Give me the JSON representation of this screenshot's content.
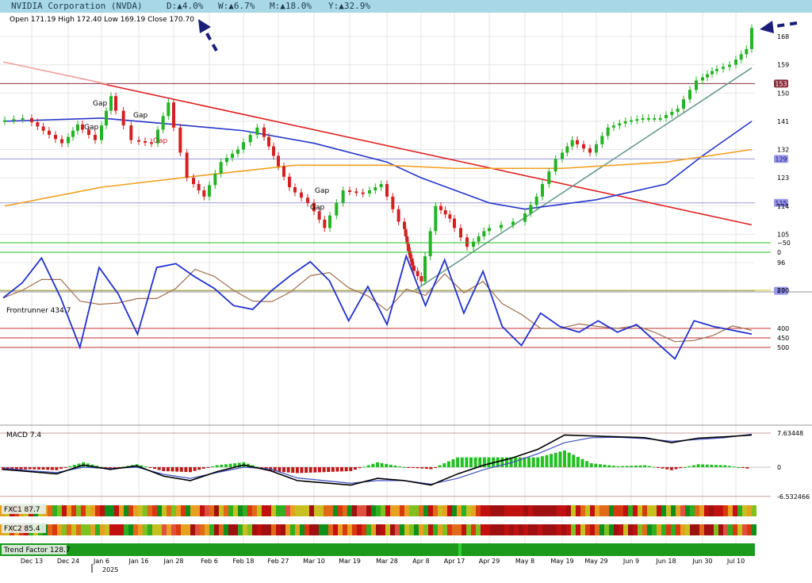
{
  "header": {
    "company": "NVIDIA Corporation (NVDA)",
    "day": "D:▲4.0%",
    "week": "W:▲6.7%",
    "month": "M:▲18.0%",
    "year": "Y:▲32.9%",
    "ohlc": "Open 171.19  High 172.40  Low 169.19  Close 170.70"
  },
  "chart_data": {
    "type": "candlestick",
    "price_axis_ticks": [
      168,
      159,
      150,
      141,
      132,
      123,
      114,
      105,
      96
    ],
    "level_labels": [
      "153",
      "129",
      "115",
      "87"
    ],
    "gap_labels": [
      "Gap",
      "Gap",
      "Gap",
      "Gap",
      "Gap",
      "Gap",
      "Gap"
    ],
    "x_tick_labels": [
      "Dec 13",
      "Dec 24",
      "Jan 6",
      "Jan 16",
      "Jan 28",
      "Feb 6",
      "Feb 18",
      "Feb 27",
      "Mar 10",
      "Mar 19",
      "Mar 28",
      "Apr 8",
      "Apr 17",
      "Apr 29",
      "May 8",
      "May 19",
      "May 29",
      "Jun 9",
      "Jun 18",
      "Jun 30",
      "Jul 10"
    ],
    "year_label": "2025",
    "close_series": [
      {
        "d": "Dec 6",
        "v": 142
      },
      {
        "d": "Dec 13",
        "v": 138
      },
      {
        "d": "Dec 20",
        "v": 134
      },
      {
        "d": "Dec 24",
        "v": 140
      },
      {
        "d": "Dec 31",
        "v": 135
      },
      {
        "d": "Jan 6",
        "v": 149
      },
      {
        "d": "Jan 10",
        "v": 135
      },
      {
        "d": "Jan 16",
        "v": 134
      },
      {
        "d": "Jan 23",
        "v": 147
      },
      {
        "d": "Jan 28",
        "v": 123
      },
      {
        "d": "Feb 3",
        "v": 117
      },
      {
        "d": "Feb 6",
        "v": 128
      },
      {
        "d": "Feb 12",
        "v": 132
      },
      {
        "d": "Feb 18",
        "v": 139
      },
      {
        "d": "Feb 24",
        "v": 130
      },
      {
        "d": "Feb 27",
        "v": 120
      },
      {
        "d": "Mar 4",
        "v": 115
      },
      {
        "d": "Mar 10",
        "v": 107
      },
      {
        "d": "Mar 14",
        "v": 119
      },
      {
        "d": "Mar 19",
        "v": 118
      },
      {
        "d": "Mar 24",
        "v": 121
      },
      {
        "d": "Mar 28",
        "v": 109
      },
      {
        "d": "Apr 3",
        "v": 102
      },
      {
        "d": "Apr 4",
        "v": 95
      },
      {
        "d": "Apr 7",
        "v": 90
      },
      {
        "d": "Apr 9",
        "v": 114
      },
      {
        "d": "Apr 14",
        "v": 110
      },
      {
        "d": "Apr 17",
        "v": 101
      },
      {
        "d": "Apr 24",
        "v": 106
      },
      {
        "d": "Apr 29",
        "v": 109
      },
      {
        "d": "May 8",
        "v": 117
      },
      {
        "d": "May 12",
        "v": 129
      },
      {
        "d": "May 19",
        "v": 135
      },
      {
        "d": "May 23",
        "v": 131
      },
      {
        "d": "May 29",
        "v": 139
      },
      {
        "d": "Jun 4",
        "v": 141
      },
      {
        "d": "Jun 9",
        "v": 142
      },
      {
        "d": "Jun 13",
        "v": 142
      },
      {
        "d": "Jun 18",
        "v": 145
      },
      {
        "d": "Jun 25",
        "v": 154
      },
      {
        "d": "Jun 30",
        "v": 157
      },
      {
        "d": "Jul 3",
        "v": 159
      },
      {
        "d": "Jul 10",
        "v": 164
      },
      {
        "d": "Jul 15",
        "v": 170.7
      }
    ],
    "moving_averages": [
      {
        "color": "#2535c8",
        "points": [
          {
            "d": "Dec 6",
            "v": 141
          },
          {
            "d": "Jan 6",
            "v": 142
          },
          {
            "d": "Jan 28",
            "v": 140
          },
          {
            "d": "Feb 18",
            "v": 138
          },
          {
            "d": "Mar 10",
            "v": 134
          },
          {
            "d": "Mar 28",
            "v": 128
          },
          {
            "d": "Apr 8",
            "v": 123
          },
          {
            "d": "Apr 29",
            "v": 115
          },
          {
            "d": "May 8",
            "v": 113
          },
          {
            "d": "May 29",
            "v": 116
          },
          {
            "d": "Jun 18",
            "v": 121
          },
          {
            "d": "Jun 30",
            "v": 130
          },
          {
            "d": "Jul 15",
            "v": 141
          }
        ]
      },
      {
        "color": "#f0a020",
        "points": [
          {
            "d": "Dec 6",
            "v": 114
          },
          {
            "d": "Jan 6",
            "v": 120
          },
          {
            "d": "Feb 6",
            "v": 124
          },
          {
            "d": "Mar 4",
            "v": 127
          },
          {
            "d": "Mar 28",
            "v": 127
          },
          {
            "d": "Apr 17",
            "v": 126
          },
          {
            "d": "May 19",
            "v": 126
          },
          {
            "d": "Jun 18",
            "v": 128
          },
          {
            "d": "Jul 15",
            "v": 132
          }
        ]
      }
    ],
    "trendlines": [
      {
        "color": "#e02020",
        "from": {
          "d": "Jan 6",
          "v": 153
        },
        "to": {
          "d": "Jul 15",
          "v": 108
        }
      },
      {
        "color": "#6a9a90",
        "from": {
          "d": "Apr 7",
          "v": 87
        },
        "to": {
          "d": "Jul 15",
          "v": 158
        }
      }
    ],
    "horizontal_levels": [
      {
        "v": 153,
        "color": "#8a3040"
      },
      {
        "v": 129,
        "color": "#9a98d8"
      },
      {
        "v": 115,
        "color": "#9a98d8"
      },
      {
        "v": 87,
        "color": "#9a98d8"
      }
    ],
    "indicators": {
      "frontrunner": {
        "label": "Frontrunner 434.7",
        "ticks": [
          "500",
          "450",
          "400",
          "200",
          "0",
          "−50"
        ],
        "values": [
          240,
          160,
          30,
          240,
          500,
          80,
          220,
          430,
          80,
          60,
          130,
          190,
          280,
          300,
          200,
          120,
          50,
          150,
          360,
          180,
          380,
          20,
          280,
          40,
          320,
          100,
          390,
          490,
          320,
          390,
          420,
          360,
          420,
          380,
          470,
          560,
          360,
          390,
          410,
          430
        ]
      },
      "macd": {
        "label": "MACD 7.4",
        "top_tick": "7.63448",
        "zero_tick": "0",
        "bottom_tick": "-6.532466",
        "macd_line": [
          -0.5,
          -1,
          -1.5,
          0.5,
          -0.5,
          0.3,
          -2,
          -3,
          -1,
          0.5,
          -0.8,
          -3,
          -3.5,
          -4,
          -2.5,
          -3,
          -4,
          -1.5,
          0.5,
          2,
          4,
          7.2,
          7,
          6.8,
          6.6,
          5.5,
          6.5,
          6.8,
          7.2
        ],
        "signal_line": [
          -0.2,
          -0.8,
          -1.2,
          0,
          -0.3,
          0,
          -1.6,
          -2.5,
          -1.2,
          0,
          -0.4,
          -2.4,
          -3,
          -3.6,
          -3,
          -3,
          -3.8,
          -2.5,
          -0.5,
          1,
          3,
          5.5,
          6.6,
          6.7,
          6.4,
          5.8,
          6.2,
          6.6,
          7.4
        ]
      },
      "fxc1": {
        "label": "FXC1 87.7"
      },
      "fxc2": {
        "label": "FXC2 85.4"
      },
      "trend_factor": {
        "label": "Trend Factor 128.7"
      }
    }
  }
}
